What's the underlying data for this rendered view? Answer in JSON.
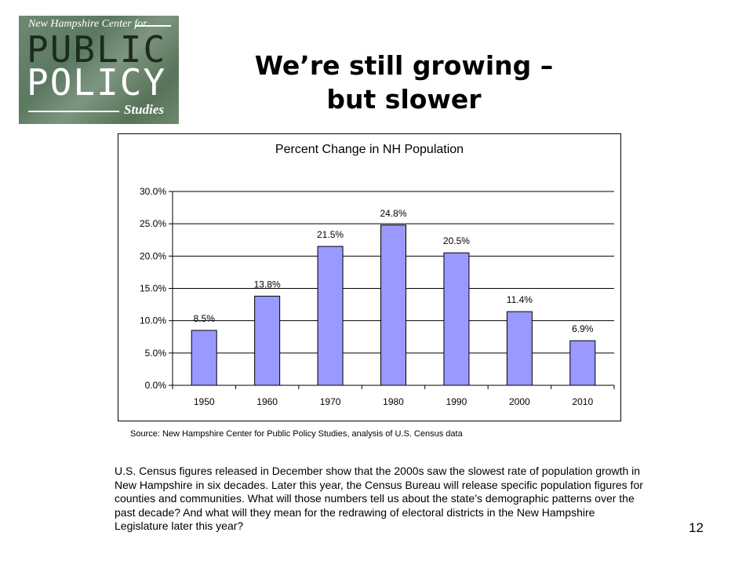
{
  "logo": {
    "line1": "New Hampshire Center for",
    "line2": "PUBLIC",
    "line3": "POLICY",
    "line4": "Studies"
  },
  "title": {
    "line1": "We’re still growing –",
    "line2": "but slower"
  },
  "chart_data": {
    "type": "bar",
    "title": "Percent Change in NH Population",
    "categories": [
      "1950",
      "1960",
      "1970",
      "1980",
      "1990",
      "2000",
      "2010"
    ],
    "values": [
      8.5,
      13.8,
      21.5,
      24.8,
      20.5,
      11.4,
      6.9
    ],
    "data_labels": [
      "8.5%",
      "13.8%",
      "21.5%",
      "24.8%",
      "20.5%",
      "11.4%",
      "6.9%"
    ],
    "y_ticks": [
      0,
      5,
      10,
      15,
      20,
      25,
      30
    ],
    "y_tick_labels": [
      "0.0%",
      "5.0%",
      "10.0%",
      "15.0%",
      "20.0%",
      "25.0%",
      "30.0%"
    ],
    "ylim": [
      0,
      30
    ],
    "xlabel": "",
    "ylabel": "",
    "grid": true,
    "legend": "none",
    "bar_color": "#9999ff"
  },
  "source": "Source: New Hampshire Center for Public Policy Studies, analysis of U.S. Census data",
  "body_text": "U.S. Census figures released in December show that the 2000s saw the slowest rate of population growth in New Hampshire in six decades. Later this year, the Census Bureau will release specific population figures for counties and communities. What will those numbers tell us about the state’s demographic patterns over the past decade? And what will they mean for the redrawing of electoral districts in the New Hampshire Legislature later this year?",
  "page_number": "12"
}
